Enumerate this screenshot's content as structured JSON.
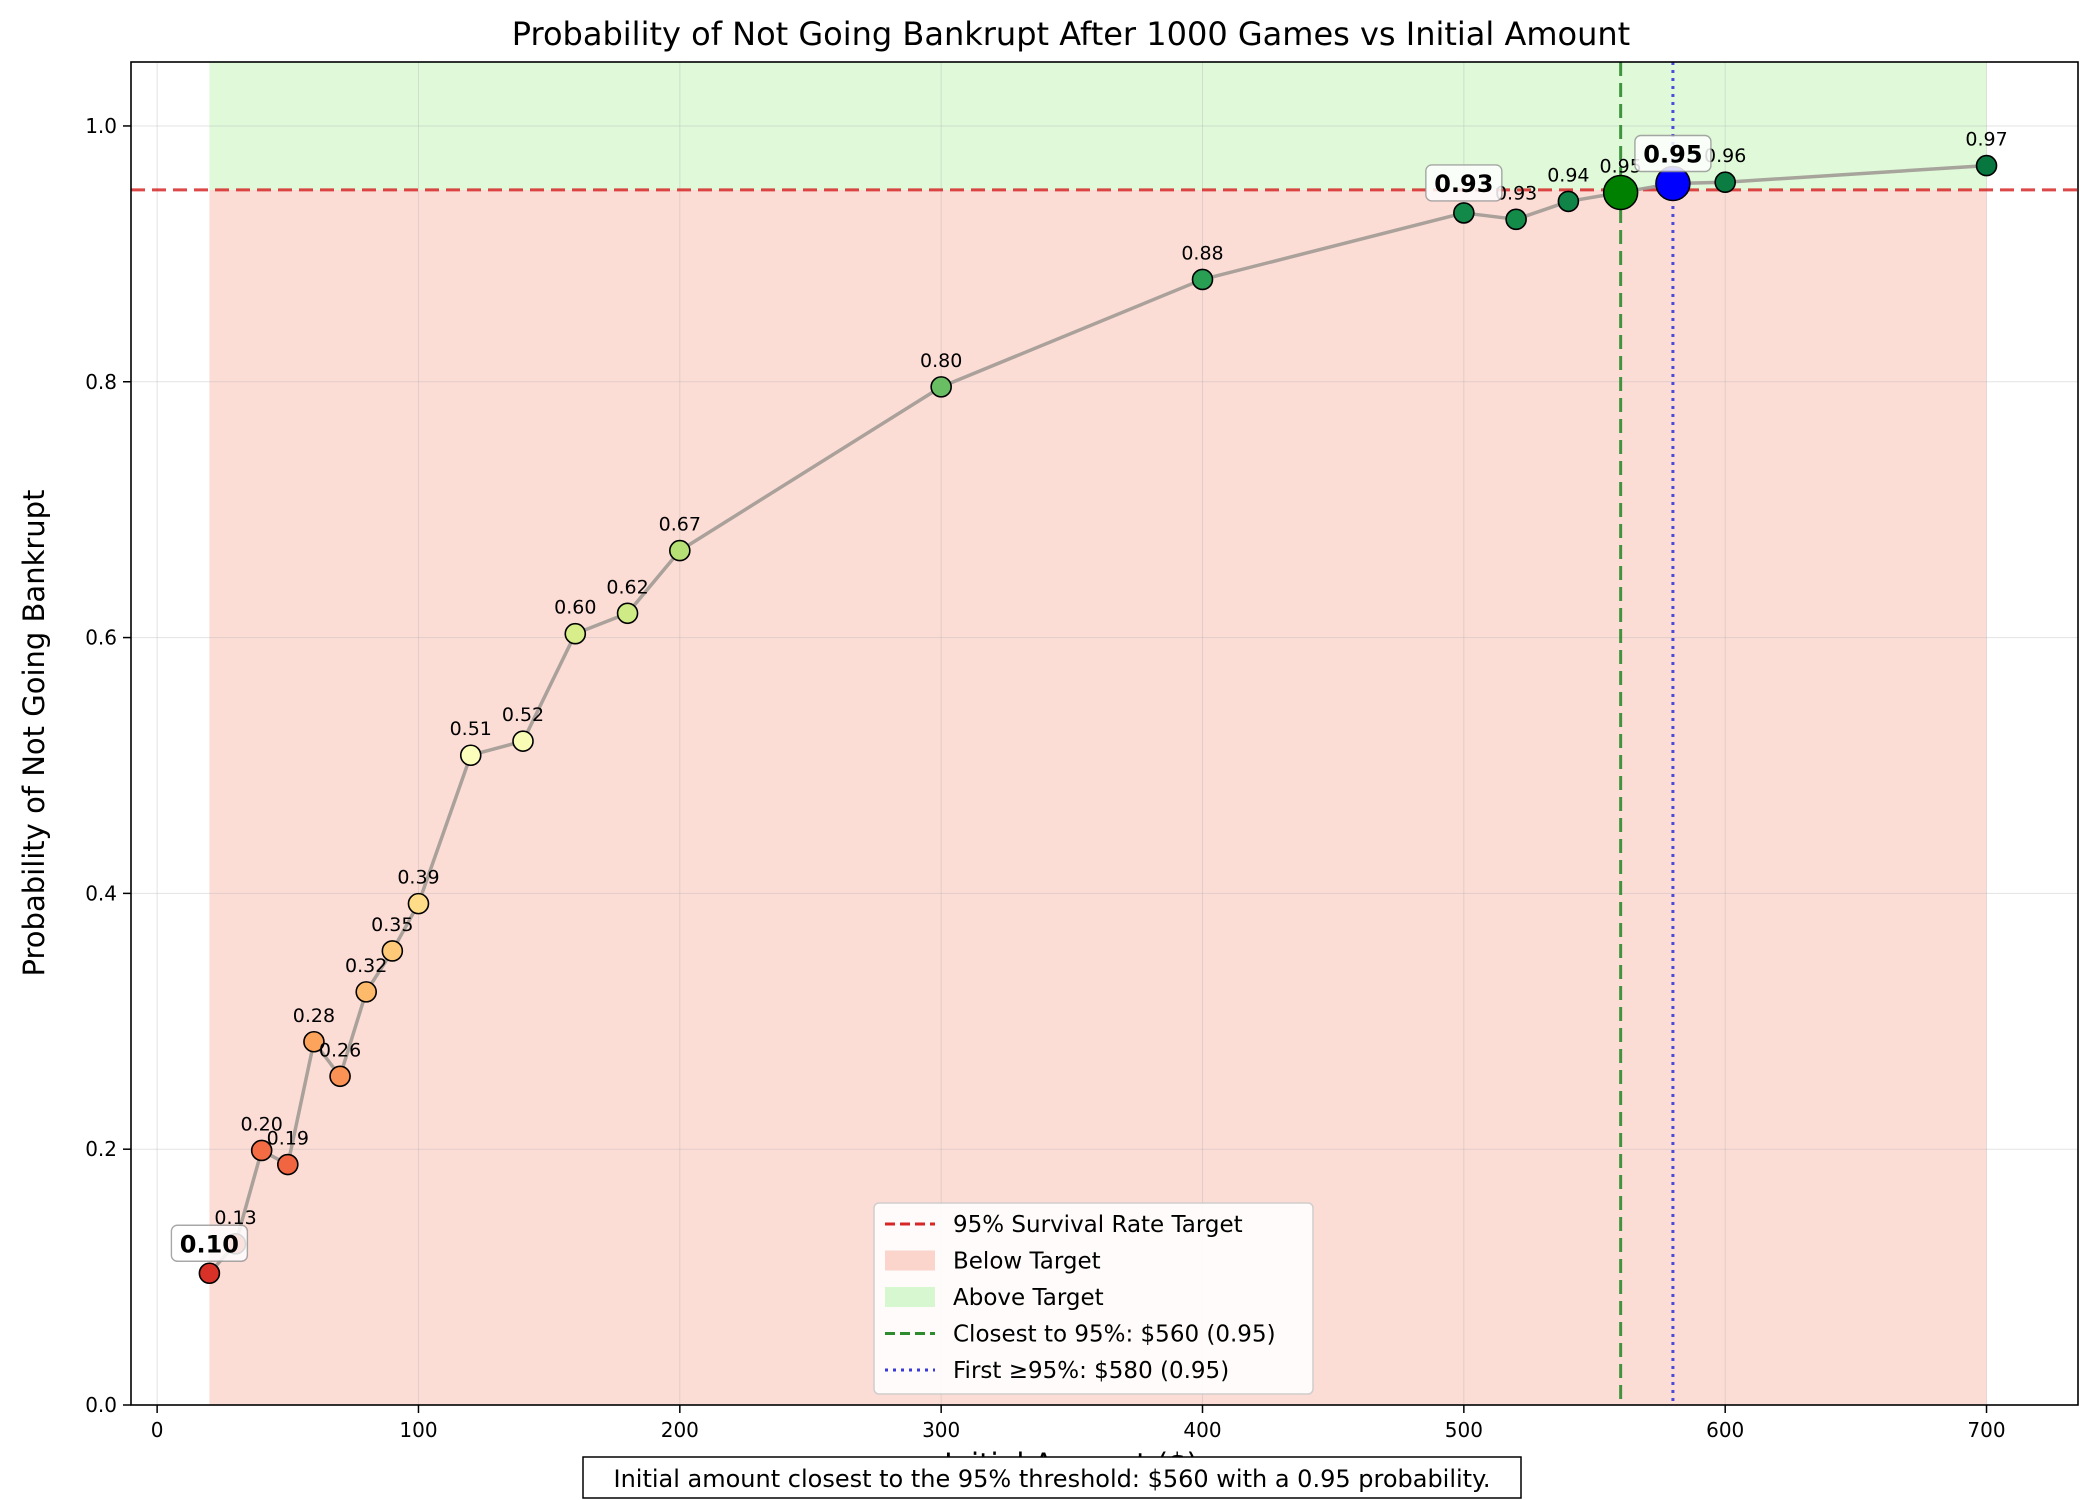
{
  "chart_data": {
    "type": "scatter",
    "title": "Probability of Not Going Bankrupt After 1000 Games vs Initial Amount",
    "xlabel": "Initial Amount ($)",
    "ylabel": "Probability of Not Going Bankrupt",
    "xlim": [
      -10,
      735
    ],
    "ylim": [
      0.0,
      1.05
    ],
    "xticks": [
      0,
      100,
      200,
      300,
      400,
      500,
      600,
      700
    ],
    "yticks": [
      0.0,
      0.2,
      0.4,
      0.6,
      0.8,
      1.0
    ],
    "xtick_labels": [
      "0",
      "100",
      "200",
      "300",
      "400",
      "500",
      "600",
      "700"
    ],
    "ytick_labels": [
      "0.0",
      "0.2",
      "0.4",
      "0.6",
      "0.8",
      "1.0"
    ],
    "grid": true,
    "legend_position": "bottom-center",
    "target": 0.95,
    "region_x_range": [
      20,
      700
    ],
    "closest_x": 560,
    "first_x": 580,
    "points": [
      {
        "x": 20,
        "y": 0.103,
        "label": "0.10"
      },
      {
        "x": 30,
        "y": 0.126,
        "label": "0.13"
      },
      {
        "x": 40,
        "y": 0.199,
        "label": "0.20"
      },
      {
        "x": 50,
        "y": 0.188,
        "label": "0.19"
      },
      {
        "x": 60,
        "y": 0.284,
        "label": "0.28"
      },
      {
        "x": 70,
        "y": 0.257,
        "label": "0.26"
      },
      {
        "x": 80,
        "y": 0.323,
        "label": "0.32"
      },
      {
        "x": 90,
        "y": 0.355,
        "label": "0.35"
      },
      {
        "x": 100,
        "y": 0.392,
        "label": "0.39"
      },
      {
        "x": 120,
        "y": 0.508,
        "label": "0.51"
      },
      {
        "x": 140,
        "y": 0.519,
        "label": "0.52"
      },
      {
        "x": 160,
        "y": 0.603,
        "label": "0.60"
      },
      {
        "x": 180,
        "y": 0.619,
        "label": "0.62"
      },
      {
        "x": 200,
        "y": 0.668,
        "label": "0.67"
      },
      {
        "x": 300,
        "y": 0.796,
        "label": "0.80"
      },
      {
        "x": 400,
        "y": 0.88,
        "label": "0.88"
      },
      {
        "x": 500,
        "y": 0.932,
        "label": "0.93"
      },
      {
        "x": 520,
        "y": 0.927,
        "label": "0.93"
      },
      {
        "x": 540,
        "y": 0.941,
        "label": "0.94"
      },
      {
        "x": 560,
        "y": 0.948,
        "label": "0.95"
      },
      {
        "x": 580,
        "y": 0.955,
        "label": "0.95"
      },
      {
        "x": 600,
        "y": 0.956,
        "label": "0.96"
      },
      {
        "x": 700,
        "y": 0.969,
        "label": "0.97"
      }
    ],
    "highlight_labels": [
      {
        "x": 20,
        "text": "0.10"
      },
      {
        "x": 500,
        "text": "0.93"
      },
      {
        "x": 580,
        "text": "0.95"
      }
    ],
    "legend": [
      {
        "key": "target",
        "label": "95% Survival Rate Target"
      },
      {
        "key": "below",
        "label": "Below Target"
      },
      {
        "key": "above",
        "label": "Above Target"
      },
      {
        "key": "closest",
        "label": "Closest to 95%: $560 (0.95)"
      },
      {
        "key": "first",
        "label": "First ≥95%: $580 (0.95)"
      }
    ],
    "footer_note": "Initial amount closest to the 95% threshold: $560 with a 0.95 probability.",
    "colors": {
      "target_line": "#d62728",
      "below_fill": "#fbd4cc",
      "above_fill": "#d7f7d0",
      "closest": "#2e8b2e",
      "closest_marker": "#008000",
      "first": "#3a3adb",
      "first_marker": "#0000ff",
      "line": "#a19a95",
      "colormap": [
        "#a50026",
        "#d73027",
        "#f46d43",
        "#fdae61",
        "#fee08b",
        "#ffffbf",
        "#d9ef8b",
        "#a6d96a",
        "#66bd63",
        "#1a9850",
        "#006837"
      ]
    }
  }
}
